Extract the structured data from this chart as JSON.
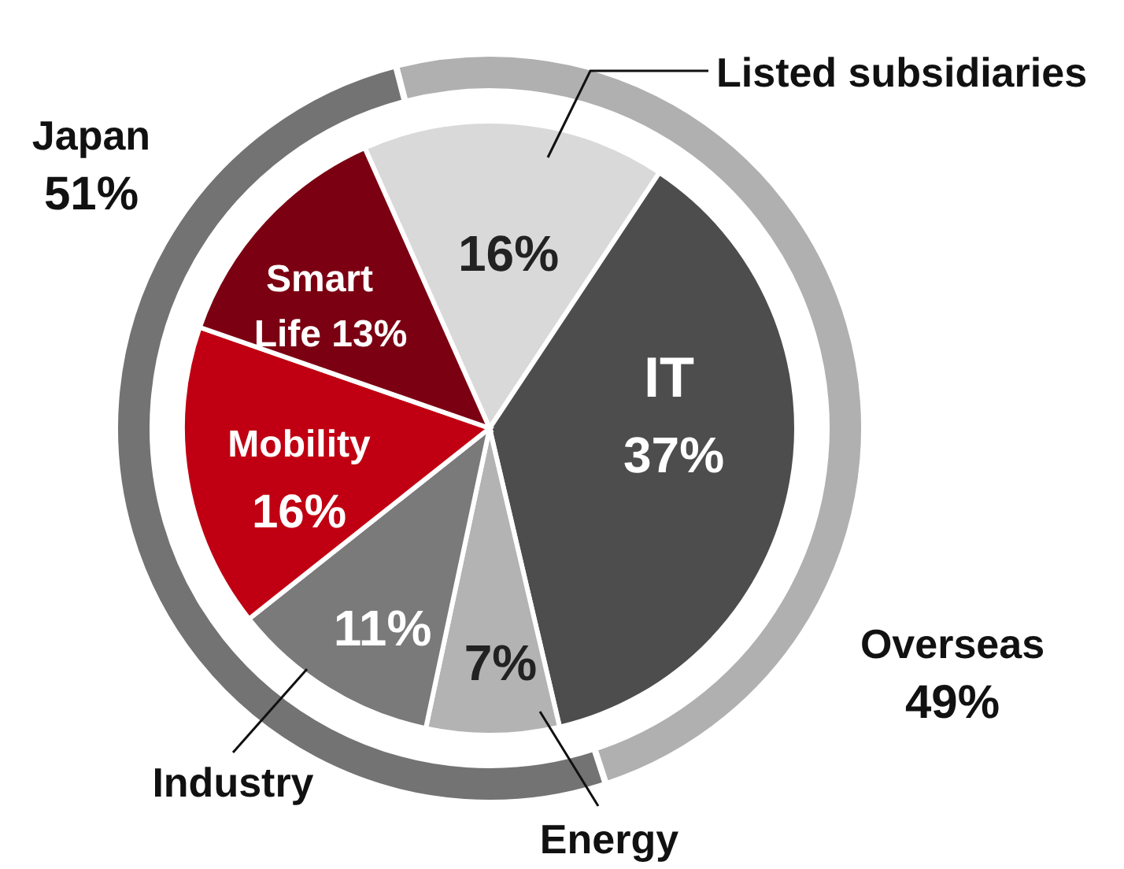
{
  "chart_data": [
    {
      "type": "pie",
      "categories": [
        "Listed subsidiaries",
        "IT",
        "Energy",
        "Industry",
        "Mobility",
        "Smart Life"
      ],
      "values": [
        16,
        37,
        7,
        11,
        16,
        13
      ],
      "colors": [
        "#d9d9d9",
        "#4d4d4d",
        "#b3b3b3",
        "#7a7a7a",
        "#c00012",
        "#7b0012"
      ],
      "value_labels": [
        "16%",
        "37%",
        "7%",
        "11%",
        "16%",
        "13%"
      ]
    },
    {
      "type": "donut",
      "categories": [
        "Overseas",
        "Japan"
      ],
      "values": [
        49,
        51
      ],
      "colors": [
        "#b0b0b0",
        "#737373"
      ],
      "value_labels": [
        "49%",
        "51%"
      ]
    }
  ]
}
